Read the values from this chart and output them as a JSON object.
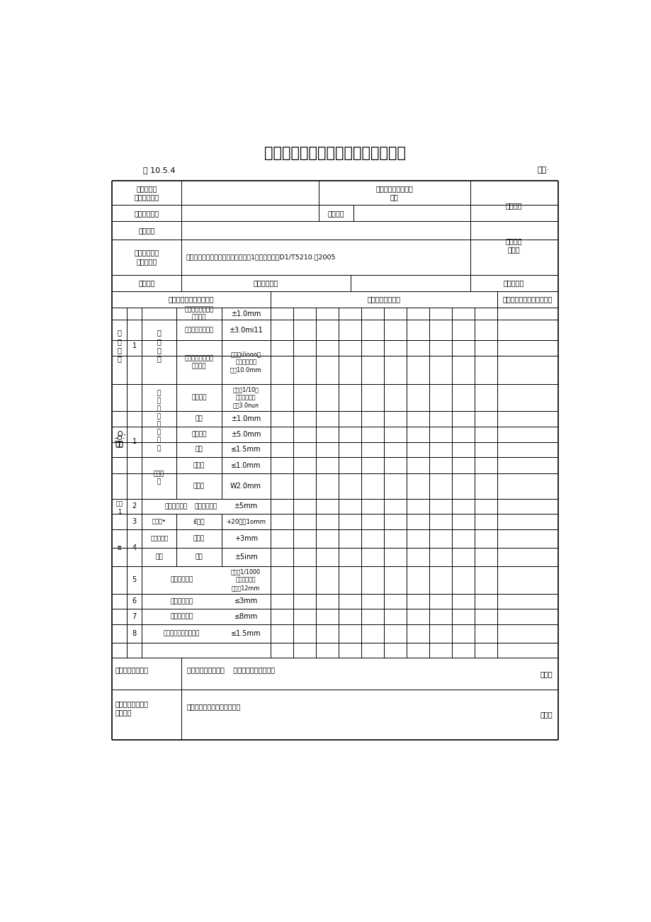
{
  "title": "避雷针组装工程检验批质量验收记录",
  "table_number": "表 10.5.4",
  "biaohao": "编号·",
  "bg_color": "#ffffff",
  "line_color": "#000000",
  "font_color": "#000000",
  "header_rows": {
    "row1_label": "单位（子单\n位）工程名称",
    "row1_mid_label": "分部（子分部）工程\n名称",
    "row1_right": "项目经理",
    "row2_label": "分项工程名称",
    "row2_mid_label": "验收部位",
    "row3_label": "施工单位",
    "row3_right": "专业工长\n（施工",
    "row4_label": "施工执行标准\n名称及编号",
    "row4_content": "电力建设施工质量验收及评定规程第1部分土建工程D1/T5210.卜2005",
    "row5_label": "分包单位",
    "row5_mid": "分包项目经理",
    "row5_right": "施工班组长",
    "sec_left": "施工质量验收规范的规定",
    "sec_mid": "施工单位自检记录",
    "sec_right": "监理（建设）单位验收记录"
  },
  "data_rows": [
    {
      "group": "主控项目",
      "num": "1",
      "col2": "外\n形\n尺\n寸",
      "col3": "支承面至第一个安\n装孔距离",
      "col4": "±1.0mm",
      "row_span": 1
    },
    {
      "group": "",
      "num": "",
      "col2": "",
      "col3": "构件连接处的截面",
      "col4": "±3.0mi11",
      "row_span": 1
    },
    {
      "group": "",
      "num": "",
      "col2": "",
      "col3": "受压构件（杆件）\n弯曲矢高",
      "col4": "不大于i/iooo杆\n件长度，且不\n大于10.0mm",
      "row_span": 1
    }
  ],
  "check_result_label": "施工单位检查结果",
  "check_result_text1": "项目专业质量检查员    项目专业技术负责人：",
  "check_result_date": "年月日",
  "supervisor_label": "监理（建设）单位\n验收结论",
  "supervisor_text": "（建设魏项目专业族负责人）",
  "supervisor_date": "年月日"
}
